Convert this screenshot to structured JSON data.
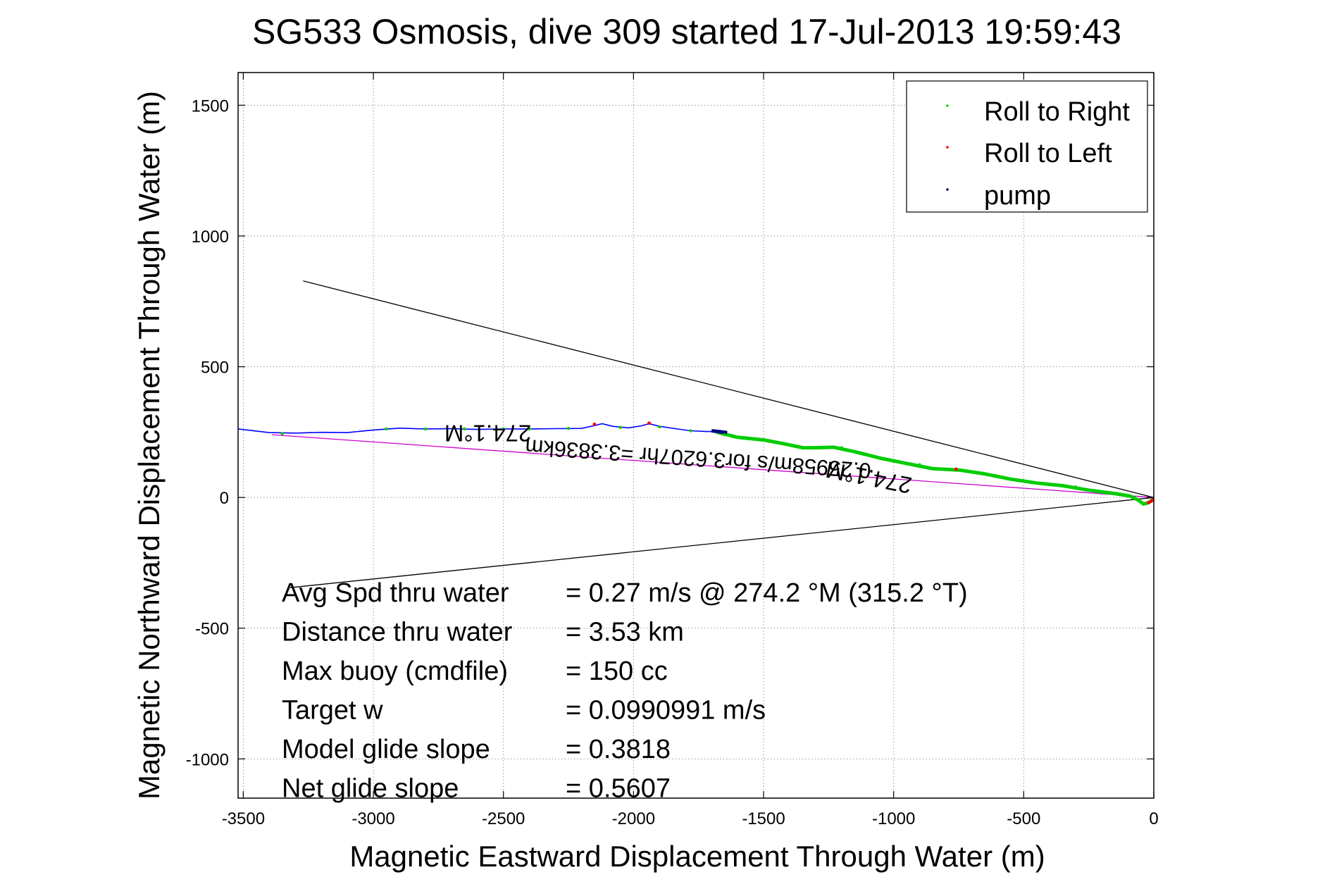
{
  "chart_data": {
    "type": "line",
    "title": "SG533 Osmosis, dive 309 started 17-Jul-2013 19:59:43",
    "xlabel": "Magnetic Eastward Displacement Through Water (m)",
    "ylabel": "Magnetic Northward Displacement Through Water (m)",
    "xlim": [
      -3520,
      0
    ],
    "ylim": [
      -1150,
      1625
    ],
    "xticks": [
      -3500,
      -3000,
      -2500,
      -2000,
      -1500,
      -1000,
      -500,
      0
    ],
    "yticks": [
      -1000,
      -500,
      0,
      500,
      1000,
      1500
    ],
    "grid": true,
    "legend_position": "top-right",
    "legend": [
      {
        "label": "Roll to Right",
        "color": "#00dd00"
      },
      {
        "label": "Roll to Left",
        "color": "#ff0000"
      },
      {
        "label": "pump",
        "color": "#000080"
      }
    ],
    "track": {
      "color": "#0000ff",
      "points": [
        [
          -3520,
          262
        ],
        [
          -3400,
          248
        ],
        [
          -3300,
          246
        ],
        [
          -3200,
          249
        ],
        [
          -3100,
          248
        ],
        [
          -3000,
          258
        ],
        [
          -2900,
          265
        ],
        [
          -2800,
          262
        ],
        [
          -2700,
          263
        ],
        [
          -2600,
          260
        ],
        [
          -2500,
          262
        ],
        [
          -2400,
          262
        ],
        [
          -2300,
          263
        ],
        [
          -2200,
          264
        ],
        [
          -2150,
          275
        ],
        [
          -2120,
          282
        ],
        [
          -2080,
          272
        ],
        [
          -2020,
          266
        ],
        [
          -1970,
          274
        ],
        [
          -1940,
          282
        ],
        [
          -1900,
          272
        ],
        [
          -1840,
          263
        ],
        [
          -1780,
          255
        ],
        [
          -1720,
          252
        ],
        [
          -1680,
          252
        ]
      ]
    },
    "green_track": {
      "color": "#00cc00",
      "points": [
        [
          -1680,
          250
        ],
        [
          -1600,
          230
        ],
        [
          -1500,
          220
        ],
        [
          -1420,
          205
        ],
        [
          -1350,
          190
        ],
        [
          -1300,
          190
        ],
        [
          -1230,
          192
        ],
        [
          -1150,
          175
        ],
        [
          -1050,
          150
        ],
        [
          -950,
          130
        ],
        [
          -850,
          110
        ],
        [
          -750,
          105
        ],
        [
          -650,
          90
        ],
        [
          -550,
          70
        ],
        [
          -450,
          55
        ],
        [
          -350,
          45
        ],
        [
          -250,
          28
        ],
        [
          -150,
          15
        ],
        [
          -90,
          5
        ],
        [
          -60,
          -10
        ],
        [
          -40,
          -25
        ],
        [
          -20,
          -20
        ],
        [
          0,
          -5
        ]
      ]
    },
    "pump_segment": {
      "color": "#000080",
      "points": [
        [
          -1700,
          255
        ],
        [
          -1640,
          248
        ]
      ]
    },
    "roll_left_points": [
      [
        -2150,
        280
      ],
      [
        -1940,
        284
      ],
      [
        -760,
        108
      ],
      [
        -10,
        -15
      ],
      [
        -20,
        -20
      ],
      [
        -5,
        -10
      ]
    ],
    "roll_right_points": [
      [
        -3350,
        244
      ],
      [
        -2950,
        262
      ],
      [
        -2800,
        262
      ],
      [
        -2650,
        262
      ],
      [
        -2500,
        262
      ],
      [
        -2400,
        262
      ],
      [
        -2250,
        264
      ],
      [
        -2050,
        268
      ],
      [
        -1900,
        270
      ],
      [
        -1780,
        255
      ],
      [
        -1650,
        240
      ],
      [
        -1500,
        220
      ],
      [
        -1350,
        190
      ],
      [
        -1200,
        190
      ],
      [
        -1050,
        150
      ],
      [
        -900,
        125
      ],
      [
        -600,
        80
      ],
      [
        -450,
        55
      ],
      [
        -300,
        40
      ],
      [
        -150,
        15
      ]
    ],
    "reference_lines": [
      {
        "name": "bound-upper",
        "color": "#000000",
        "points": [
          [
            -3270,
            828
          ],
          [
            0,
            0
          ]
        ]
      },
      {
        "name": "bound-lower",
        "color": "#000000",
        "points": [
          [
            -3320,
            -345
          ],
          [
            0,
            0
          ]
        ]
      },
      {
        "name": "net-displacement",
        "color": "#cc00cc",
        "points": [
          [
            -3390,
            240
          ],
          [
            0,
            0
          ]
        ]
      }
    ],
    "annotations": [
      {
        "text": "274.1°M",
        "x": -2560,
        "y": 277,
        "rotate": 180,
        "size": 33
      },
      {
        "text": "274.1°M",
        "x": -1090,
        "y": 106,
        "rotate": 191,
        "size": 33
      },
      {
        "text": "0.25958m/s for3.6207hr =3.3836km",
        "x": -1750,
        "y": 176,
        "rotate": 184,
        "size": 31
      }
    ],
    "stats": [
      {
        "label": "Avg Spd thru water",
        "value": "=  0.27 m/s @ 274.2 °M (315.2 °T)"
      },
      {
        "label": "Distance thru water",
        "value": "=  3.53 km"
      },
      {
        "label": "Max buoy (cmdfile)",
        "value": "= 150 cc"
      },
      {
        "label": "Target w",
        "value": "= 0.0990991 m/s"
      },
      {
        "label": "Model glide slope",
        "value": "= 0.3818"
      },
      {
        "label": "Net glide slope",
        "value": "= 0.5607"
      }
    ]
  }
}
